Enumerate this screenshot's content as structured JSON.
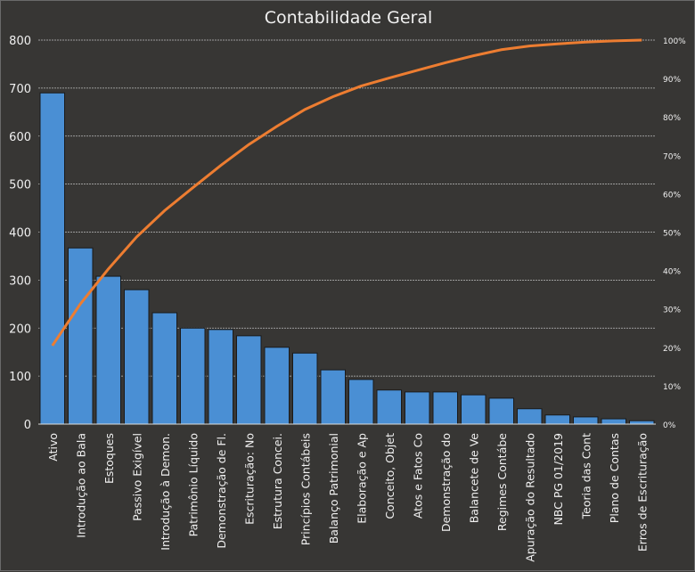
{
  "chart_data": {
    "type": "bar",
    "title": "Contabilidade Geral",
    "categories": [
      "Ativo",
      "Introdução  ao Bala",
      "Estoques",
      "Passivo Exigível",
      "Introdução  à Demon.",
      "Patrimônio  Líquido",
      "Demonstração de Fl.",
      "Escrituração: No",
      "Estrutura Concei.",
      "Princípios Contábeis",
      "Balanço Patrimonial",
      "Elaboração e Ap",
      "Conceito, Objet",
      "Atos e Fatos Co",
      "Demonstração do",
      "Balancete de Ve",
      "Regimes Contábe",
      "Apuração do Resultado",
      "NBC PG 01/2019",
      "Teoria das Cont",
      "Plano de Contas",
      "Erros de Escrituração"
    ],
    "values": [
      690,
      367,
      308,
      280,
      232,
      200,
      197,
      184,
      160,
      148,
      113,
      93,
      71,
      67,
      67,
      61,
      54,
      32,
      19,
      15,
      11,
      7
    ],
    "line": {
      "type": "cumulative-percent",
      "color": "#ed7d31"
    },
    "bar_color": "#4a8fd4",
    "ylim": [
      0,
      800
    ],
    "yticks": [
      0,
      100,
      200,
      300,
      400,
      500,
      600,
      700,
      800
    ],
    "y2lim": [
      0,
      100
    ],
    "y2ticks": [
      "0%",
      "10%",
      "20%",
      "30%",
      "40%",
      "50%",
      "60%",
      "70%",
      "80%",
      "90%",
      "100%"
    ],
    "grid": true
  }
}
